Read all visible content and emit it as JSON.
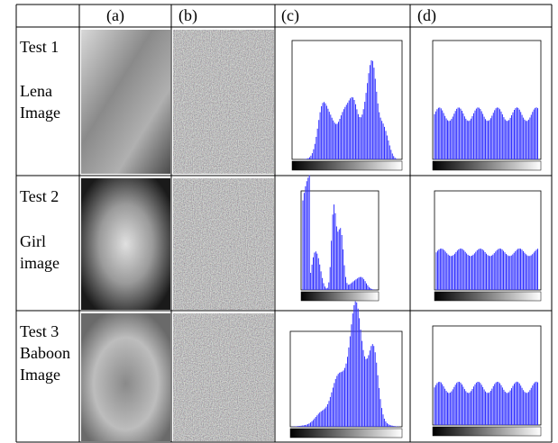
{
  "table": {
    "header": [
      "(a)",
      "(b)",
      "(c)",
      "(d)"
    ],
    "rows": [
      {
        "test": "Test 1",
        "name": "Lena Image"
      },
      {
        "test": "Test 2",
        "name": "Girl image"
      },
      {
        "test": "Test 3",
        "name": "Baboon Image"
      }
    ]
  }
}
